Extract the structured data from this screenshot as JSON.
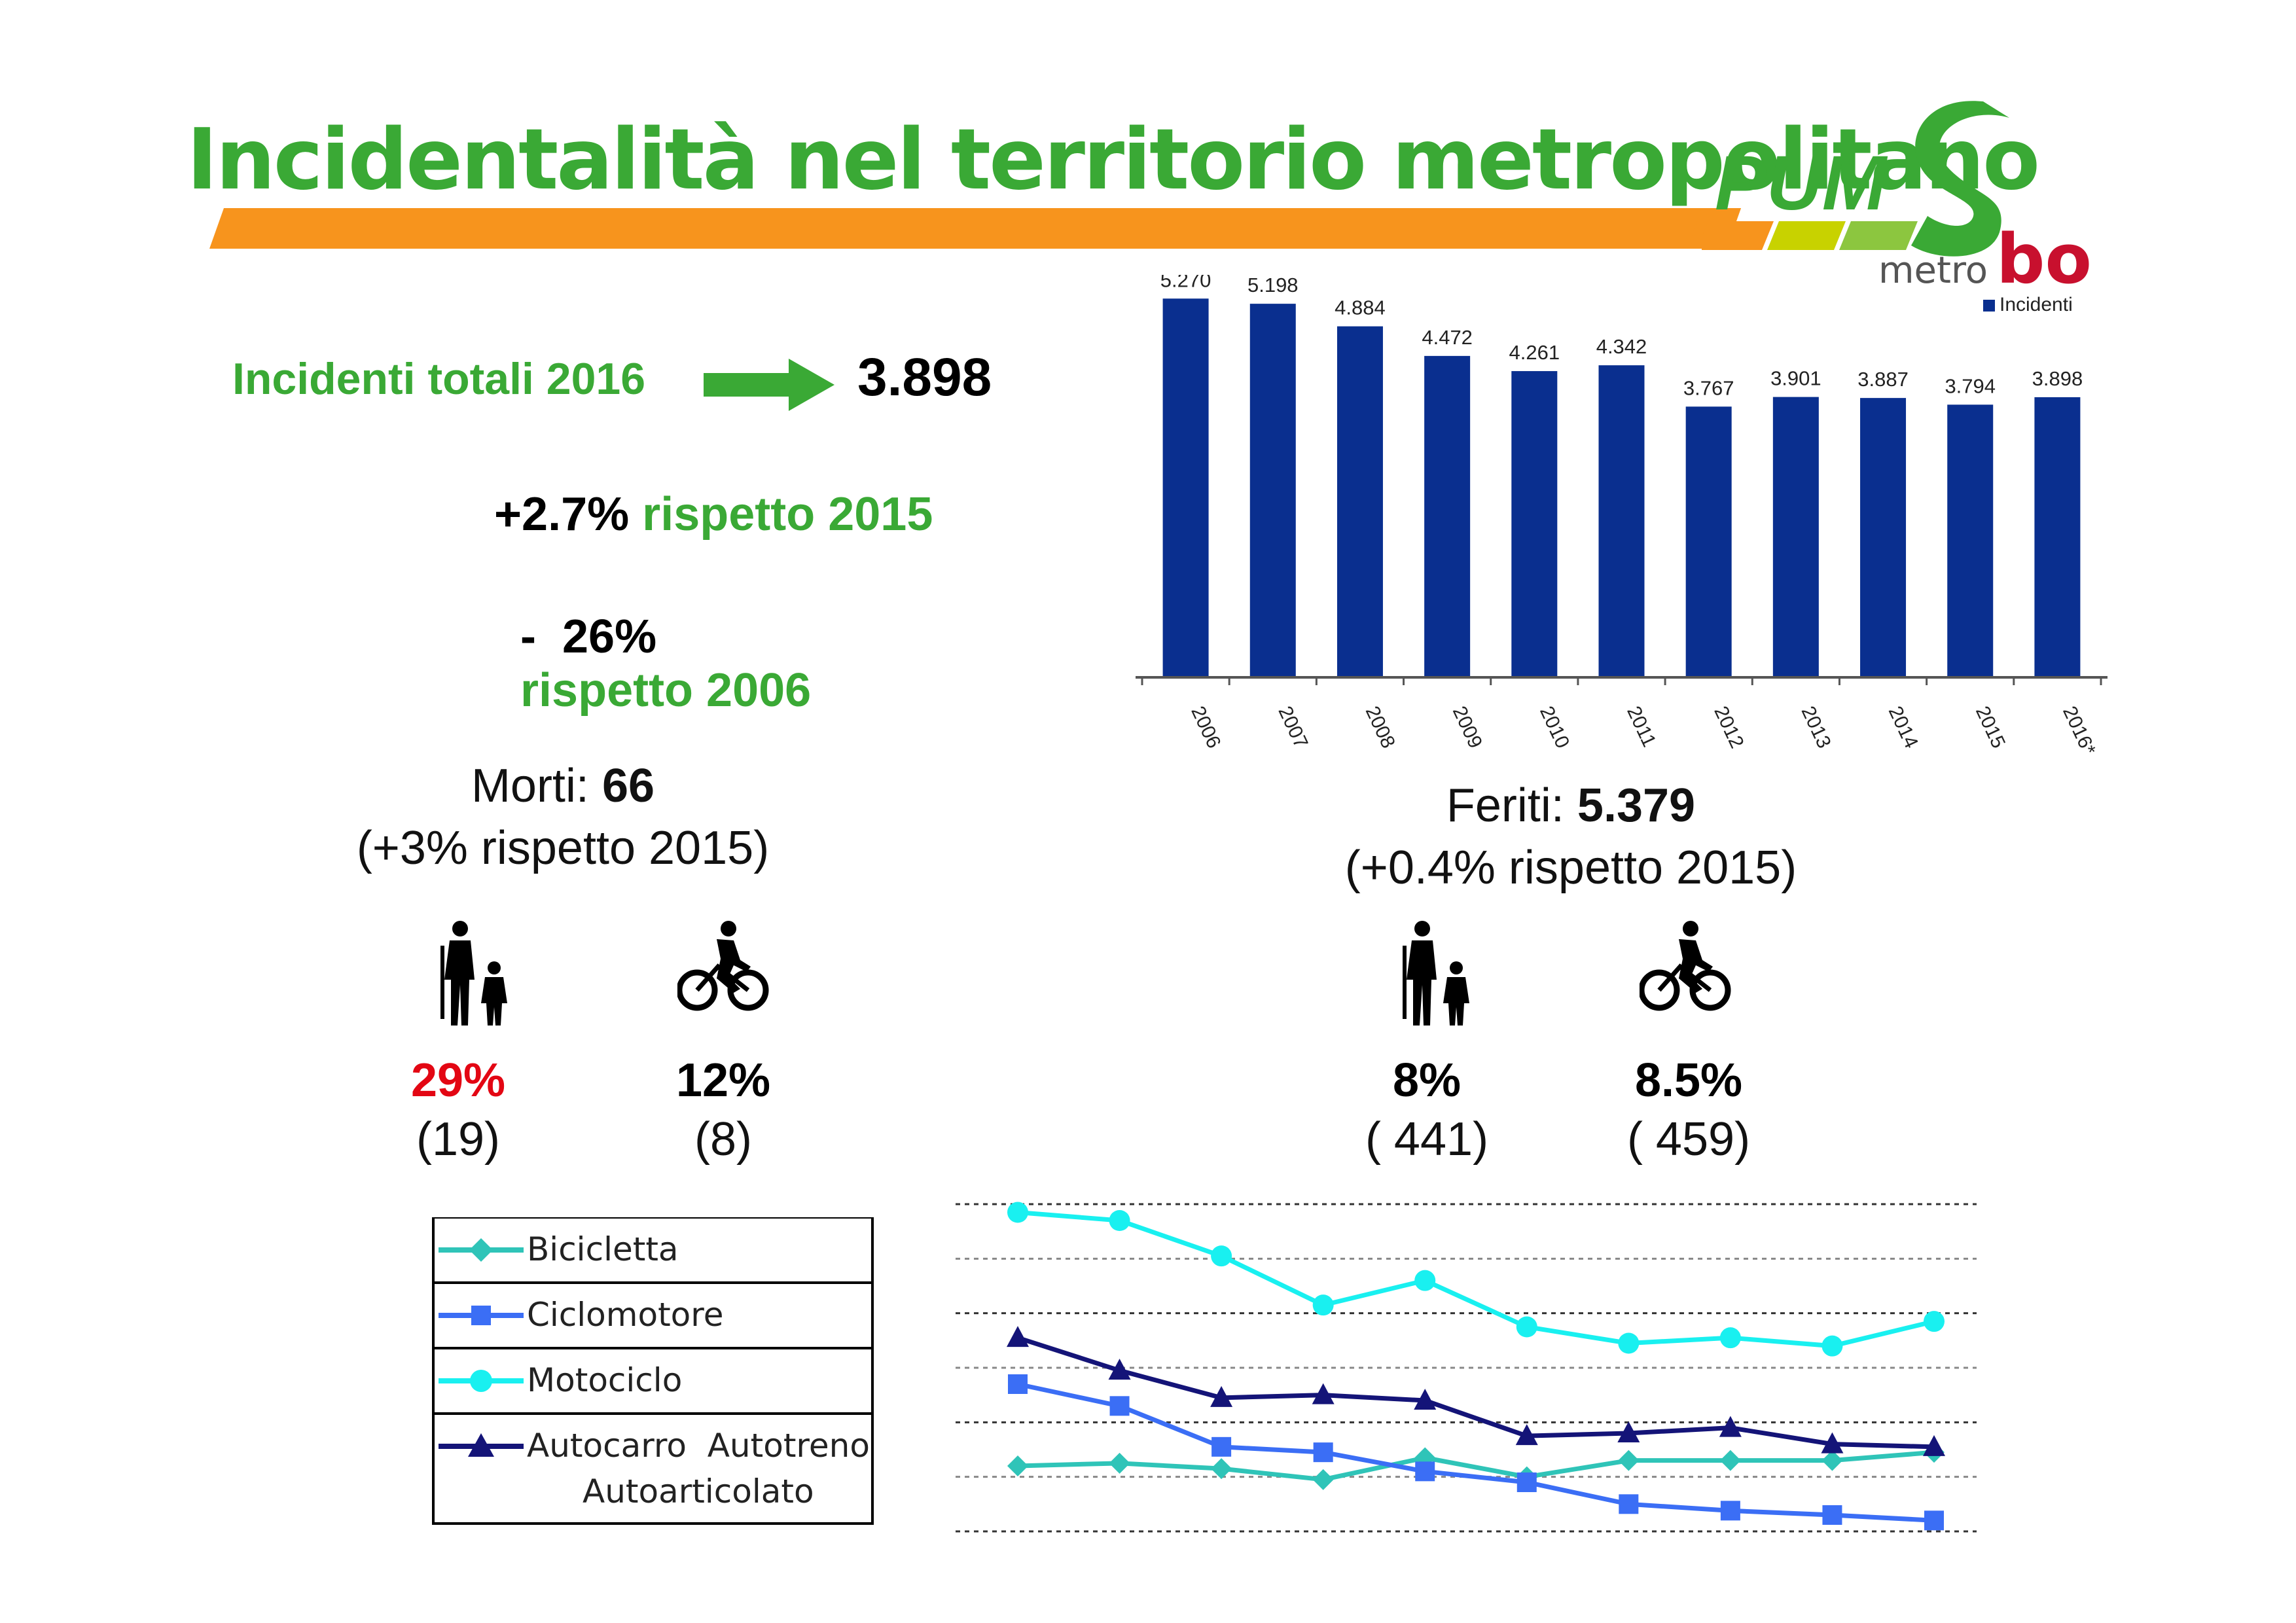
{
  "slide": {
    "title": "Incidentalità nel territorio metropolitano",
    "logo": {
      "main": "PUMS",
      "sub": "metro",
      "suffix": "bo",
      "colors": [
        "#3aa935",
        "#c8d200",
        "#e2001a",
        "#555555"
      ]
    },
    "accent_colors": {
      "green": "#3aa935",
      "orange": "#f7941d",
      "red": "#e30613",
      "navy": "#0a2f8f"
    }
  },
  "summary": {
    "label": "Incidenti totali 2016",
    "value": "3.898",
    "comparisons": [
      {
        "num": "+2.7%",
        "text": "rispetto 2015"
      },
      {
        "num": "-  26%",
        "text": "rispetto 2006"
      }
    ]
  },
  "deaths": {
    "label": "Morti: ",
    "value": "66",
    "change": "(+3% rispetto 2015)",
    "pedestrian": {
      "icon": "pedestrian-icon",
      "pct": "29%",
      "count": "(19)",
      "pct_color": "#e30613"
    },
    "cyclist": {
      "icon": "cyclist-icon",
      "pct": "12%",
      "count": "(8)",
      "pct_color": "#000000"
    }
  },
  "injured": {
    "label": "Feriti: ",
    "value": "5.379",
    "change": "(+0.4% rispetto 2015)",
    "pedestrian": {
      "icon": "pedestrian-icon",
      "pct": "8%",
      "count": "( 441)",
      "pct_color": "#000000"
    },
    "cyclist": {
      "icon": "cyclist-icon",
      "pct": "8.5%",
      "count": "( 459)",
      "pct_color": "#000000"
    }
  },
  "chart_data": [
    {
      "type": "bar",
      "categories": [
        "2006",
        "2007",
        "2008",
        "2009",
        "2010",
        "2011",
        "2012",
        "2013",
        "2014",
        "2015",
        "2016*"
      ],
      "values": [
        5270,
        5198,
        4884,
        4472,
        4261,
        4342,
        3767,
        3901,
        3887,
        3794,
        3898
      ],
      "value_labels": [
        "5.270",
        "5.198",
        "4.884",
        "4.472",
        "4.261",
        "4.342",
        "3.767",
        "3.901",
        "3.887",
        "3.794",
        "3.898"
      ],
      "series_name": "Incidenti",
      "color": "#0a2f8f",
      "legend": "top-right",
      "ylim": [
        0,
        5600
      ]
    },
    {
      "type": "line",
      "grid": true,
      "x": [
        1,
        2,
        3,
        4,
        5,
        6,
        7,
        8,
        9,
        10,
        11
      ],
      "ylim": [
        0,
        6
      ],
      "series": [
        {
          "name": "Bicicletta",
          "color": "#2fc4b8",
          "marker": "diamond",
          "values": [
            1.2,
            1.25,
            1.15,
            0.95,
            1.35,
            1.0,
            1.3,
            1.3,
            1.3,
            1.45,
            null
          ]
        },
        {
          "name": "Ciclomotore",
          "color": "#3b6ef5",
          "marker": "square",
          "values": [
            2.7,
            2.3,
            1.55,
            1.45,
            1.1,
            0.9,
            0.5,
            0.38,
            0.3,
            0.2,
            null
          ]
        },
        {
          "name": "Motociclo",
          "color": "#19f0f0",
          "marker": "circle",
          "values": [
            5.85,
            5.7,
            5.05,
            4.15,
            4.6,
            3.75,
            3.45,
            3.55,
            3.4,
            3.85,
            null
          ]
        },
        {
          "name": "Autocarro  Autotreno",
          "name_line2": "Autoarticolato",
          "color": "#141478",
          "marker": "triangle",
          "values": [
            3.55,
            2.95,
            2.45,
            2.5,
            2.4,
            1.75,
            1.8,
            1.9,
            1.6,
            1.55,
            null
          ]
        }
      ]
    }
  ]
}
